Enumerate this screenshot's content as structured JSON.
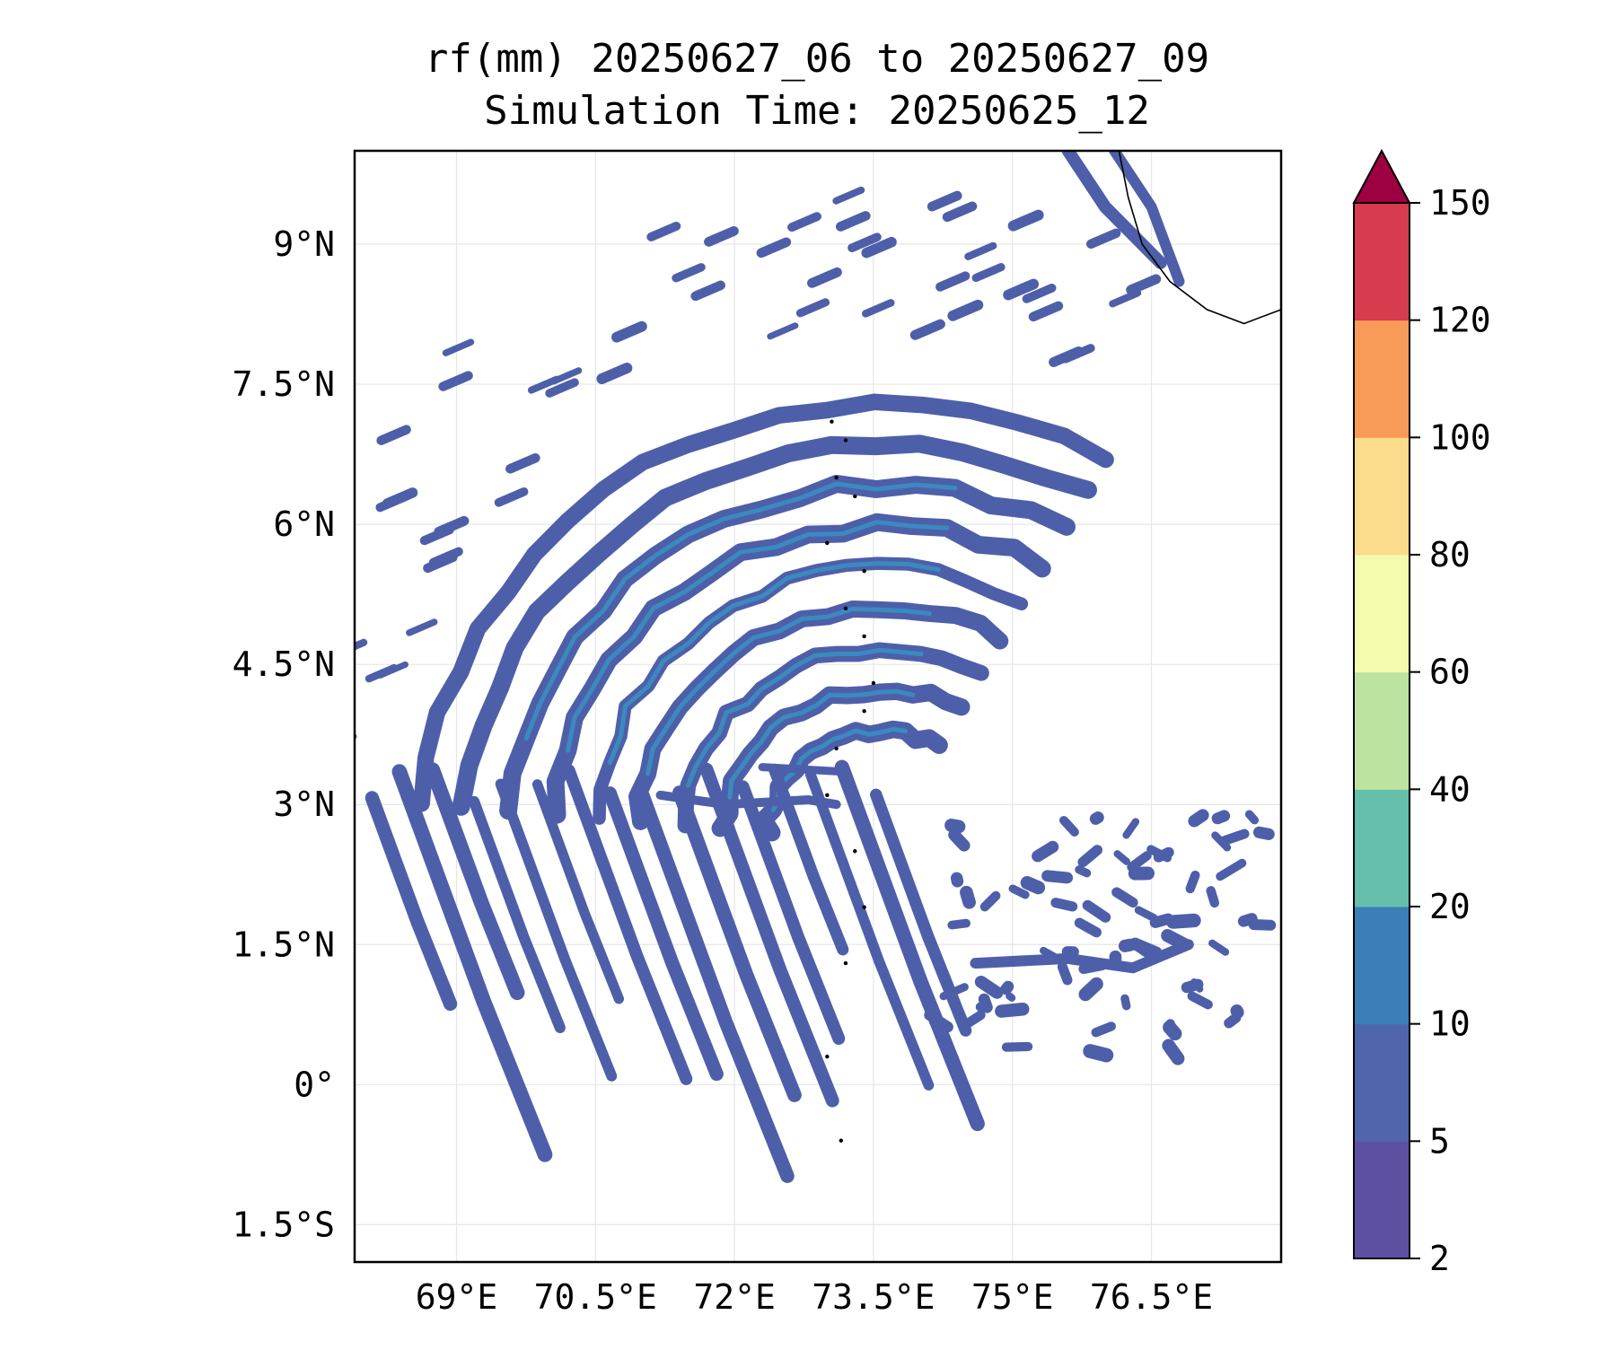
{
  "title_line1": "rf(mm) 20250627_06 to 20250627_09",
  "title_line2": "Simulation Time: 20250625_12",
  "map": {
    "lon_range": [
      67.9,
      77.9
    ],
    "lat_range": [
      -1.9,
      10.0
    ],
    "lon_ticks": [
      {
        "value": 69.0,
        "label": "69°E"
      },
      {
        "value": 70.5,
        "label": "70.5°E"
      },
      {
        "value": 72.0,
        "label": "72°E"
      },
      {
        "value": 73.5,
        "label": "73.5°E"
      },
      {
        "value": 75.0,
        "label": "75°E"
      },
      {
        "value": 76.5,
        "label": "76.5°E"
      }
    ],
    "lat_ticks": [
      {
        "value": 9.0,
        "label": "9°N"
      },
      {
        "value": 7.5,
        "label": "7.5°N"
      },
      {
        "value": 6.0,
        "label": "6°N"
      },
      {
        "value": 4.5,
        "label": "4.5°N"
      },
      {
        "value": 3.0,
        "label": "3°N"
      },
      {
        "value": 1.5,
        "label": "1.5°N"
      },
      {
        "value": 0.0,
        "label": "0°"
      },
      {
        "value": -1.5,
        "label": "1.5°S"
      }
    ],
    "gridlines": true,
    "field_color": "#4e5fa9",
    "field_dark_color": "#3a8abf"
  },
  "colorbar": {
    "levels": [
      "2",
      "5",
      "10",
      "20",
      "40",
      "60",
      "80",
      "100",
      "120",
      "150"
    ],
    "colors": [
      "#5e50a1",
      "#4f66ad",
      "#3a7fb8",
      "#65bfaa",
      "#bde3a0",
      "#f4fbad",
      "#fbdc8c",
      "#f99b58",
      "#d63c4e"
    ],
    "extend_color": "#9e0142",
    "extend": "max"
  }
}
